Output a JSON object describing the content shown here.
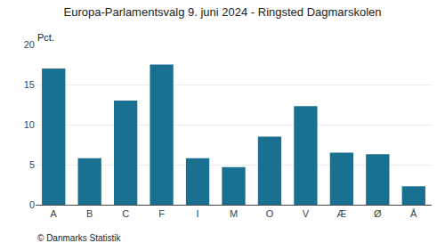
{
  "chart_data": {
    "type": "bar",
    "title": "Europa-Parlamentsvalg 9. juni 2024 - Ringsted Dagmarskolen",
    "categories": [
      "A",
      "B",
      "C",
      "F",
      "I",
      "M",
      "O",
      "V",
      "Æ",
      "Ø",
      "Å"
    ],
    "values": [
      17.0,
      5.8,
      13.0,
      17.5,
      5.8,
      4.7,
      8.5,
      12.3,
      6.5,
      6.3,
      2.3
    ],
    "color": "#1a7090",
    "ylabel": "Pct.",
    "annotations": [
      "© Danmarks Statistik"
    ],
    "ylim": [
      0,
      20
    ],
    "yticks": [
      0,
      5,
      10,
      15,
      20
    ],
    "grid": true
  }
}
